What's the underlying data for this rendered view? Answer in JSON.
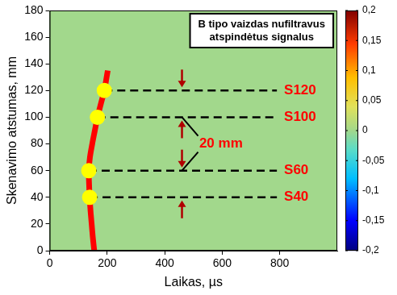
{
  "chart_data": {
    "type": "scatter",
    "title": "B tipo vaizdas nufiltravus atspindėtus signalus",
    "x_label": "Laikas, µs",
    "y_label": "Skenavimo atstumas, mm",
    "xlim": [
      0,
      1000
    ],
    "ylim": [
      0,
      180
    ],
    "xticks": [
      0,
      200,
      400,
      600,
      800
    ],
    "yticks": [
      0,
      20,
      40,
      60,
      80,
      100,
      120,
      140,
      160,
      180
    ],
    "grid": false,
    "series": [
      {
        "color": "#ff0000",
        "marker": "none",
        "line_style": "solid",
        "x": [
          155,
          150,
          146,
          142,
          139,
          137,
          136,
          140,
          148,
          157,
          166,
          178,
          190,
          198,
          202
        ],
        "values": [
          0,
          10,
          20,
          30,
          40,
          50,
          60,
          70,
          80,
          90,
          100,
          110,
          120,
          130,
          135
        ]
      },
      {
        "color": "#000000",
        "marker": "none",
        "line_style": "dashed",
        "x": [
          139,
          790
        ],
        "values": [
          40,
          40
        ]
      },
      {
        "color": "#000000",
        "marker": "none",
        "line_style": "dashed",
        "x": [
          136,
          790
        ],
        "values": [
          60,
          60
        ]
      },
      {
        "color": "#000000",
        "marker": "none",
        "line_style": "dashed",
        "x": [
          166,
          790
        ],
        "values": [
          100,
          100
        ]
      },
      {
        "color": "#000000",
        "marker": "none",
        "line_style": "dashed",
        "x": [
          190,
          790
        ],
        "values": [
          120,
          120
        ]
      },
      {
        "color": "#ffff00",
        "marker": "circle",
        "line_style": "none",
        "x": [
          139,
          136,
          166,
          190
        ],
        "values": [
          40,
          60,
          100,
          120
        ]
      }
    ],
    "annotations": [
      {
        "text": "S120",
        "x": 815,
        "y": 120,
        "color": "#ff0000"
      },
      {
        "text": "S100",
        "x": 815,
        "y": 100,
        "color": "#ff0000"
      },
      {
        "text": "S60",
        "x": 815,
        "y": 60,
        "color": "#ff0000"
      },
      {
        "text": "S40",
        "x": 815,
        "y": 40,
        "color": "#ff0000"
      },
      {
        "text": "20 mm",
        "x": 520,
        "y": 80,
        "color": "#ff0000"
      }
    ],
    "colorbar": {
      "lim": [
        -0.2,
        0.2
      ],
      "ticks": [
        {
          "value": -0.2,
          "label": "-0,2"
        },
        {
          "value": -0.15,
          "label": "-0,15"
        },
        {
          "value": -0.1,
          "label": "-0,1"
        },
        {
          "value": -0.05,
          "label": "-0,05"
        },
        0,
        {
          "value": 0.05,
          "label": "0,05"
        },
        {
          "value": 0.1,
          "label": "0,1"
        },
        {
          "value": 0.15,
          "label": "0,15"
        },
        {
          "value": 0.2,
          "label": "0,2"
        }
      ]
    }
  }
}
